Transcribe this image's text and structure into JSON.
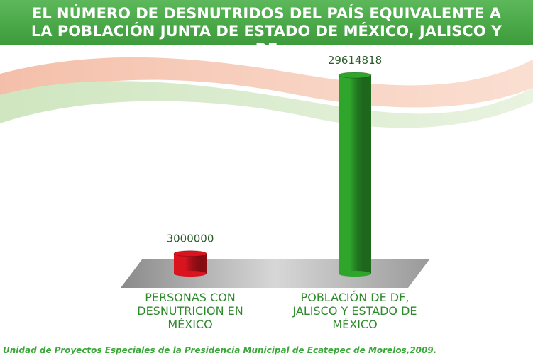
{
  "chart_data": {
    "type": "bar",
    "title": "EL NÚMERO DE DESNUTRIDOS DEL PAÍS EQUIVALENTE A LA POBLACIÓN JUNTA DE ESTADO DE MÉXICO, JALISCO Y DF",
    "categories": [
      "PERSONAS CON DESNUTRICION EN MÉXICO",
      "POBLACIÓN DE DF, JALISCO Y ESTADO DE MÉXICO"
    ],
    "values": [
      3000000,
      29614818
    ],
    "colors": [
      "#d9141f",
      "#2fa52c"
    ],
    "source": "Unidad de Proyectos Especiales de la Presidencia Municipal de Ecatepec de Morelos,2009."
  }
}
